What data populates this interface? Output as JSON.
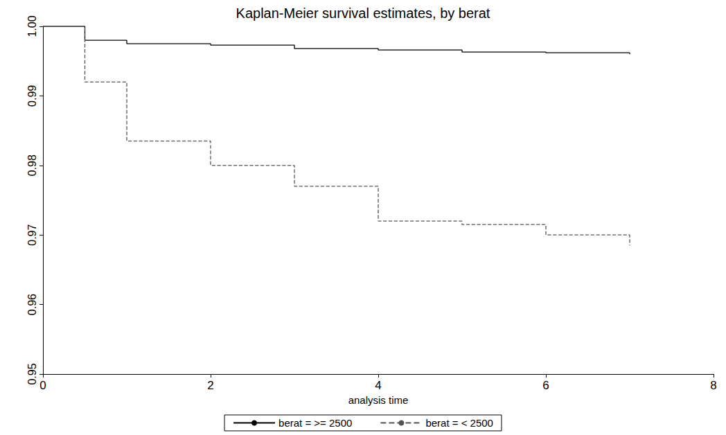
{
  "chart_data": {
    "type": "line",
    "title": "Kaplan-Meier survival estimates, by berat",
    "x_label": "analysis time",
    "x": [
      0,
      0.5,
      1,
      2,
      3,
      4,
      5,
      6,
      7
    ],
    "series": [
      {
        "name": "berat = >= 2500",
        "color": "#000000",
        "line_style": "solid",
        "values": [
          1.0,
          0.998,
          0.9975,
          0.9973,
          0.9968,
          0.9966,
          0.9963,
          0.9962,
          0.996
        ]
      },
      {
        "name": "berat = < 2500",
        "color": "#555555",
        "line_style": "dashed",
        "values": [
          1.0,
          0.992,
          0.9835,
          0.98,
          0.977,
          0.972,
          0.9715,
          0.97,
          0.9685
        ]
      }
    ],
    "xlim": [
      0,
      8
    ],
    "xticks": [
      0,
      2,
      4,
      6,
      8
    ],
    "ylim": [
      0.95,
      1.0
    ],
    "yticks": [
      0.95,
      0.96,
      0.97,
      0.98,
      0.99,
      {
        "value": 1,
        "label": "1.00"
      }
    ],
    "grid": false,
    "legend": "bottom"
  }
}
